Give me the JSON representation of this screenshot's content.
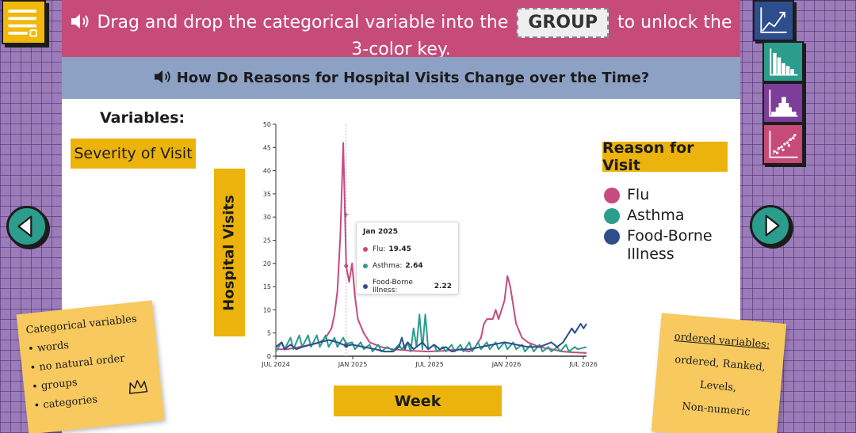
{
  "instruction": {
    "text_before": "Drag and drop the categorical variable into the",
    "group_label": "GROUP",
    "text_after": "to unlock the",
    "line2": "3-color key."
  },
  "page_title": "How Do Reasons for Hospital Visits Change over the Time?",
  "variables_label": "Variables:",
  "variable_chip": "Severity of Visit",
  "group_axis_label": "Reason for Visit",
  "y_axis_label": "Hospital Visits",
  "x_axis_label": "Week",
  "legend": [
    {
      "label": "Flu",
      "color": "#C64B7E"
    },
    {
      "label": "Asthma",
      "color": "#2C9C8C"
    },
    {
      "label": "Food-Borne\n  Illness",
      "color": "#2E4D8C"
    }
  ],
  "tooltip": {
    "title": "Jan 2025",
    "rows": [
      {
        "label": "Flu:",
        "value": "19.45",
        "color": "#C64B7E"
      },
      {
        "label": "Asthma:",
        "value": "2.64",
        "color": "#2C9C8C"
      },
      {
        "label": "Food-Borne Illness:",
        "value": "2.22",
        "color": "#2E4D8C"
      }
    ]
  },
  "chart_data": {
    "type": "line",
    "ylim": [
      0,
      50
    ],
    "yticks": [
      "0",
      "5",
      "10",
      "15",
      "20",
      "25",
      "30",
      "35",
      "40",
      "45",
      "50"
    ],
    "xticks": [
      "JUL 2024",
      "JAN 2025",
      "JUL 2025",
      "JAN 2026",
      "JUL 2026"
    ],
    "x_range_weeks": [
      0,
      106
    ],
    "hover_week": 24,
    "series": [
      {
        "name": "Flu",
        "color": "#C64B7E",
        "points": [
          [
            0,
            1.5
          ],
          [
            4,
            1.5
          ],
          [
            8,
            2
          ],
          [
            12,
            2.5
          ],
          [
            15,
            3
          ],
          [
            17,
            4
          ],
          [
            19,
            6
          ],
          [
            20,
            9
          ],
          [
            21,
            14
          ],
          [
            22,
            26
          ],
          [
            23,
            46
          ],
          [
            24,
            19.45
          ],
          [
            25,
            16
          ],
          [
            26,
            20
          ],
          [
            27,
            13
          ],
          [
            28,
            8
          ],
          [
            30,
            5
          ],
          [
            32,
            3
          ],
          [
            36,
            2
          ],
          [
            40,
            1.5
          ],
          [
            46,
            1.2
          ],
          [
            52,
            1
          ],
          [
            58,
            1.2
          ],
          [
            62,
            1.5
          ],
          [
            66,
            1
          ],
          [
            68,
            2
          ],
          [
            70,
            4
          ],
          [
            71,
            7
          ],
          [
            72,
            8
          ],
          [
            74,
            8
          ],
          [
            75,
            10
          ],
          [
            76,
            8
          ],
          [
            78,
            12
          ],
          [
            79,
            17.3
          ],
          [
            80,
            15
          ],
          [
            81,
            11
          ],
          [
            82,
            7
          ],
          [
            84,
            4
          ],
          [
            86,
            3
          ],
          [
            90,
            2
          ],
          [
            94,
            1.5
          ],
          [
            98,
            1
          ],
          [
            102,
            0.8
          ],
          [
            106,
            0.7
          ]
        ]
      },
      {
        "name": "Asthma",
        "color": "#2C9C8C",
        "points": [
          [
            0,
            1
          ],
          [
            2,
            3
          ],
          [
            3,
            1.5
          ],
          [
            5,
            4
          ],
          [
            6,
            1.5
          ],
          [
            8,
            4.5
          ],
          [
            9,
            2
          ],
          [
            11,
            4.5
          ],
          [
            12,
            2
          ],
          [
            14,
            4.5
          ],
          [
            15,
            2
          ],
          [
            17,
            4.5
          ],
          [
            18,
            2
          ],
          [
            20,
            4
          ],
          [
            21,
            2
          ],
          [
            23,
            4
          ],
          [
            24,
            2.64
          ],
          [
            26,
            3
          ],
          [
            27,
            1.5
          ],
          [
            29,
            3
          ],
          [
            30,
            1.5
          ],
          [
            32,
            2.5
          ],
          [
            33,
            1
          ],
          [
            35,
            2.5
          ],
          [
            36,
            1
          ],
          [
            38,
            2
          ],
          [
            40,
            1.2
          ],
          [
            42,
            2.5
          ],
          [
            43,
            1.5
          ],
          [
            45,
            3
          ],
          [
            46,
            1
          ],
          [
            47,
            6
          ],
          [
            48,
            2
          ],
          [
            49,
            9
          ],
          [
            50,
            1.5
          ],
          [
            51,
            9
          ],
          [
            52,
            1.5
          ],
          [
            54,
            2.5
          ],
          [
            55,
            1
          ],
          [
            57,
            2
          ],
          [
            58,
            1
          ],
          [
            60,
            2.5
          ],
          [
            61,
            1
          ],
          [
            63,
            2.5
          ],
          [
            64,
            1
          ],
          [
            66,
            3
          ],
          [
            67,
            1
          ],
          [
            69,
            3
          ],
          [
            70,
            1.5
          ],
          [
            72,
            3
          ],
          [
            73,
            1.5
          ],
          [
            75,
            3
          ],
          [
            76,
            1.5
          ],
          [
            78,
            3
          ],
          [
            79,
            1.5
          ],
          [
            81,
            3
          ],
          [
            82,
            1.5
          ],
          [
            84,
            2.5
          ],
          [
            85,
            1
          ],
          [
            87,
            2.5
          ],
          [
            88,
            1
          ],
          [
            90,
            2.5
          ],
          [
            91,
            1
          ],
          [
            93,
            2
          ],
          [
            94,
            1
          ],
          [
            96,
            2
          ],
          [
            97,
            1
          ],
          [
            99,
            2.5
          ],
          [
            100,
            1
          ],
          [
            102,
            2
          ],
          [
            103,
            1.5
          ],
          [
            106,
            2
          ]
        ]
      },
      {
        "name": "Food-Borne Illness",
        "color": "#2E4D8C",
        "points": [
          [
            0,
            2
          ],
          [
            2,
            3
          ],
          [
            3,
            1.5
          ],
          [
            5,
            2.5
          ],
          [
            7,
            1.5
          ],
          [
            9,
            2
          ],
          [
            12,
            2.5
          ],
          [
            15,
            3
          ],
          [
            18,
            3.5
          ],
          [
            21,
            3
          ],
          [
            24,
            2.22
          ],
          [
            26,
            2.5
          ],
          [
            30,
            2
          ],
          [
            34,
            1.5
          ],
          [
            37,
            1
          ],
          [
            40,
            1
          ],
          [
            42,
            2
          ],
          [
            43,
            4
          ],
          [
            44,
            1.5
          ],
          [
            45,
            3
          ],
          [
            47,
            1.5
          ],
          [
            50,
            3
          ],
          [
            52,
            1.5
          ],
          [
            54,
            2.5
          ],
          [
            56,
            1.5
          ],
          [
            58,
            2
          ],
          [
            60,
            1
          ],
          [
            63,
            1.5
          ],
          [
            66,
            1.5
          ],
          [
            70,
            2
          ],
          [
            74,
            2.5
          ],
          [
            78,
            3
          ],
          [
            82,
            2.5
          ],
          [
            86,
            2
          ],
          [
            90,
            2
          ],
          [
            94,
            3
          ],
          [
            96,
            2
          ],
          [
            98,
            3
          ],
          [
            100,
            5
          ],
          [
            101,
            6
          ],
          [
            102,
            5
          ],
          [
            103,
            6
          ],
          [
            104,
            7
          ],
          [
            105,
            6
          ],
          [
            106,
            7
          ]
        ]
      }
    ]
  },
  "sticky_left": {
    "lines": [
      "Categorical variables",
      "• words",
      "• no natural order",
      "• groups",
      "• categories"
    ]
  },
  "sticky_right": {
    "lines": [
      "ordered variables:",
      "ordered, Ranked,",
      "Levels,",
      "Non-numeric"
    ]
  }
}
